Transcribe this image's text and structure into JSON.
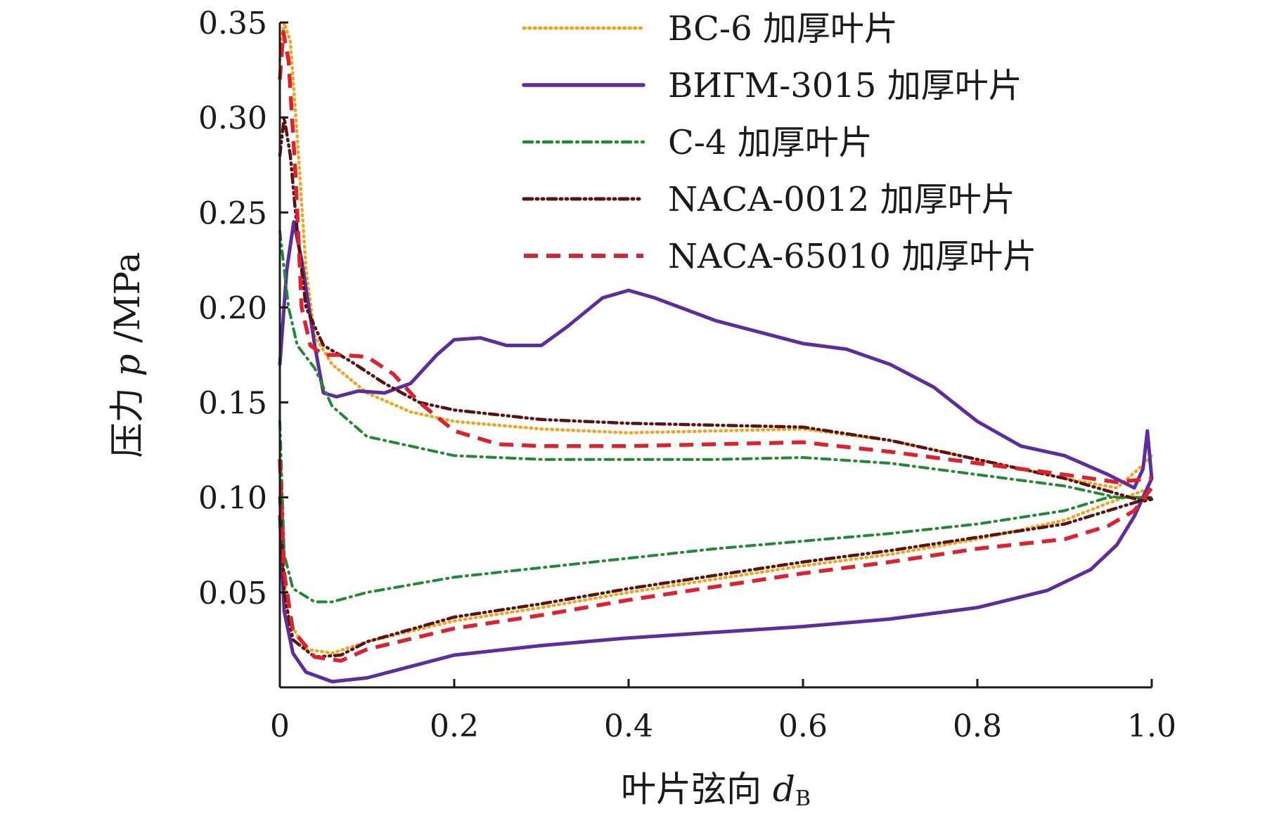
{
  "chart_data": {
    "type": "line",
    "xlabel": "叶片弦向",
    "xlabel_var": "d",
    "xlabel_sub": "B",
    "ylabel": "压力",
    "ylabel_var": "p",
    "ylabel_unit": "/MPa",
    "xlim": [
      0,
      1.0
    ],
    "ylim": [
      0,
      0.35
    ],
    "xticks": [
      {
        "value": 0,
        "label": "0"
      },
      {
        "value": 0.2,
        "label": "0.2"
      },
      {
        "value": 0.4,
        "label": "0.4"
      },
      {
        "value": 0.6,
        "label": "0.6"
      },
      {
        "value": 0.8,
        "label": "0.8"
      },
      {
        "value": 1.0,
        "label": "1.0"
      }
    ],
    "yticks": [
      {
        "value": 0.05,
        "label": "0.05"
      },
      {
        "value": 0.1,
        "label": "0.10"
      },
      {
        "value": 0.15,
        "label": "0.15"
      },
      {
        "value": 0.2,
        "label": "0.20"
      },
      {
        "value": 0.25,
        "label": "0.25"
      },
      {
        "value": 0.3,
        "label": "0.30"
      },
      {
        "value": 0.35,
        "label": "0.35"
      }
    ],
    "grid": false,
    "legend_position": "top-right",
    "series": [
      {
        "name": "BC-6 加厚叶片",
        "color": "#f5a31a",
        "style": "dotted",
        "upper": [
          [
            0,
            0.33
          ],
          [
            0.005,
            0.35
          ],
          [
            0.012,
            0.34
          ],
          [
            0.02,
            0.29
          ],
          [
            0.03,
            0.22
          ],
          [
            0.04,
            0.185
          ],
          [
            0.06,
            0.17
          ],
          [
            0.1,
            0.155
          ],
          [
            0.15,
            0.145
          ],
          [
            0.2,
            0.14
          ],
          [
            0.3,
            0.136
          ],
          [
            0.4,
            0.134
          ],
          [
            0.5,
            0.135
          ],
          [
            0.6,
            0.136
          ],
          [
            0.7,
            0.13
          ],
          [
            0.8,
            0.12
          ],
          [
            0.9,
            0.11
          ],
          [
            0.96,
            0.105
          ],
          [
            0.985,
            0.115
          ],
          [
            1.0,
            0.122
          ]
        ],
        "lower": [
          [
            0,
            0.12
          ],
          [
            0.005,
            0.06
          ],
          [
            0.01,
            0.035
          ],
          [
            0.03,
            0.02
          ],
          [
            0.06,
            0.018
          ],
          [
            0.1,
            0.024
          ],
          [
            0.2,
            0.035
          ],
          [
            0.3,
            0.042
          ],
          [
            0.4,
            0.05
          ],
          [
            0.5,
            0.057
          ],
          [
            0.6,
            0.064
          ],
          [
            0.7,
            0.07
          ],
          [
            0.8,
            0.078
          ],
          [
            0.9,
            0.088
          ],
          [
            0.95,
            0.097
          ],
          [
            1.0,
            0.105
          ]
        ]
      },
      {
        "name": "ВИГМ-3015 加厚叶片",
        "color": "#5c2d9e",
        "style": "solid",
        "upper": [
          [
            0,
            0.17
          ],
          [
            0.008,
            0.22
          ],
          [
            0.016,
            0.245
          ],
          [
            0.025,
            0.225
          ],
          [
            0.04,
            0.18
          ],
          [
            0.05,
            0.155
          ],
          [
            0.065,
            0.153
          ],
          [
            0.09,
            0.156
          ],
          [
            0.12,
            0.155
          ],
          [
            0.15,
            0.16
          ],
          [
            0.18,
            0.175
          ],
          [
            0.2,
            0.183
          ],
          [
            0.23,
            0.184
          ],
          [
            0.26,
            0.18
          ],
          [
            0.3,
            0.18
          ],
          [
            0.33,
            0.19
          ],
          [
            0.37,
            0.205
          ],
          [
            0.4,
            0.209
          ],
          [
            0.43,
            0.205
          ],
          [
            0.5,
            0.193
          ],
          [
            0.6,
            0.181
          ],
          [
            0.65,
            0.178
          ],
          [
            0.7,
            0.17
          ],
          [
            0.75,
            0.158
          ],
          [
            0.8,
            0.14
          ],
          [
            0.85,
            0.127
          ],
          [
            0.9,
            0.122
          ],
          [
            0.95,
            0.112
          ],
          [
            0.98,
            0.105
          ],
          [
            0.99,
            0.115
          ],
          [
            0.995,
            0.135
          ],
          [
            1.0,
            0.11
          ]
        ],
        "lower": [
          [
            0,
            0.09
          ],
          [
            0.005,
            0.04
          ],
          [
            0.015,
            0.018
          ],
          [
            0.03,
            0.008
          ],
          [
            0.06,
            0.003
          ],
          [
            0.1,
            0.005
          ],
          [
            0.15,
            0.011
          ],
          [
            0.2,
            0.017
          ],
          [
            0.3,
            0.022
          ],
          [
            0.4,
            0.026
          ],
          [
            0.5,
            0.029
          ],
          [
            0.6,
            0.032
          ],
          [
            0.7,
            0.036
          ],
          [
            0.8,
            0.042
          ],
          [
            0.88,
            0.051
          ],
          [
            0.93,
            0.062
          ],
          [
            0.96,
            0.075
          ],
          [
            0.98,
            0.09
          ],
          [
            0.99,
            0.1
          ],
          [
            1.0,
            0.11
          ]
        ]
      },
      {
        "name": "C-4 加厚叶片",
        "color": "#1f8a32",
        "style": "dashdot",
        "upper": [
          [
            0,
            0.24
          ],
          [
            0.005,
            0.22
          ],
          [
            0.01,
            0.2
          ],
          [
            0.02,
            0.18
          ],
          [
            0.04,
            0.168
          ],
          [
            0.06,
            0.148
          ],
          [
            0.1,
            0.132
          ],
          [
            0.15,
            0.127
          ],
          [
            0.2,
            0.122
          ],
          [
            0.3,
            0.12
          ],
          [
            0.4,
            0.12
          ],
          [
            0.5,
            0.12
          ],
          [
            0.6,
            0.121
          ],
          [
            0.7,
            0.118
          ],
          [
            0.8,
            0.112
          ],
          [
            0.9,
            0.106
          ],
          [
            0.96,
            0.1
          ],
          [
            1.0,
            0.1
          ]
        ],
        "lower": [
          [
            0,
            0.14
          ],
          [
            0.005,
            0.07
          ],
          [
            0.015,
            0.052
          ],
          [
            0.04,
            0.045
          ],
          [
            0.06,
            0.045
          ],
          [
            0.1,
            0.05
          ],
          [
            0.2,
            0.058
          ],
          [
            0.3,
            0.063
          ],
          [
            0.4,
            0.068
          ],
          [
            0.5,
            0.073
          ],
          [
            0.6,
            0.077
          ],
          [
            0.7,
            0.081
          ],
          [
            0.8,
            0.086
          ],
          [
            0.9,
            0.093
          ],
          [
            0.95,
            0.1
          ],
          [
            1.0,
            0.1
          ]
        ]
      },
      {
        "name": "NACA-0012 加厚叶片",
        "color": "#5a1212",
        "style": "dashdotdot",
        "upper": [
          [
            0,
            0.28
          ],
          [
            0.005,
            0.3
          ],
          [
            0.012,
            0.28
          ],
          [
            0.02,
            0.24
          ],
          [
            0.03,
            0.2
          ],
          [
            0.05,
            0.18
          ],
          [
            0.08,
            0.172
          ],
          [
            0.12,
            0.16
          ],
          [
            0.16,
            0.15
          ],
          [
            0.2,
            0.146
          ],
          [
            0.3,
            0.141
          ],
          [
            0.4,
            0.139
          ],
          [
            0.5,
            0.138
          ],
          [
            0.6,
            0.137
          ],
          [
            0.7,
            0.13
          ],
          [
            0.8,
            0.12
          ],
          [
            0.9,
            0.11
          ],
          [
            0.96,
            0.102
          ],
          [
            0.99,
            0.098
          ],
          [
            1.0,
            0.099
          ]
        ],
        "lower": [
          [
            0,
            0.1
          ],
          [
            0.005,
            0.05
          ],
          [
            0.015,
            0.025
          ],
          [
            0.04,
            0.016
          ],
          [
            0.07,
            0.017
          ],
          [
            0.1,
            0.024
          ],
          [
            0.2,
            0.037
          ],
          [
            0.3,
            0.044
          ],
          [
            0.4,
            0.052
          ],
          [
            0.5,
            0.059
          ],
          [
            0.6,
            0.066
          ],
          [
            0.7,
            0.072
          ],
          [
            0.8,
            0.079
          ],
          [
            0.9,
            0.086
          ],
          [
            0.95,
            0.093
          ],
          [
            1.0,
            0.1
          ]
        ]
      },
      {
        "name": "NACA-65010 加厚叶片",
        "color": "#e0202e",
        "style": "dashed",
        "upper": [
          [
            0,
            0.32
          ],
          [
            0.004,
            0.345
          ],
          [
            0.01,
            0.33
          ],
          [
            0.018,
            0.27
          ],
          [
            0.025,
            0.2
          ],
          [
            0.035,
            0.18
          ],
          [
            0.05,
            0.175
          ],
          [
            0.07,
            0.175
          ],
          [
            0.1,
            0.174
          ],
          [
            0.13,
            0.165
          ],
          [
            0.16,
            0.15
          ],
          [
            0.2,
            0.135
          ],
          [
            0.25,
            0.128
          ],
          [
            0.3,
            0.127
          ],
          [
            0.4,
            0.127
          ],
          [
            0.5,
            0.128
          ],
          [
            0.6,
            0.129
          ],
          [
            0.7,
            0.124
          ],
          [
            0.8,
            0.118
          ],
          [
            0.9,
            0.112
          ],
          [
            0.96,
            0.108
          ],
          [
            1.0,
            0.11
          ]
        ],
        "lower": [
          [
            0,
            0.12
          ],
          [
            0.005,
            0.06
          ],
          [
            0.015,
            0.03
          ],
          [
            0.04,
            0.016
          ],
          [
            0.07,
            0.014
          ],
          [
            0.1,
            0.02
          ],
          [
            0.2,
            0.031
          ],
          [
            0.3,
            0.038
          ],
          [
            0.4,
            0.046
          ],
          [
            0.5,
            0.053
          ],
          [
            0.6,
            0.06
          ],
          [
            0.7,
            0.066
          ],
          [
            0.8,
            0.073
          ],
          [
            0.9,
            0.078
          ],
          [
            0.95,
            0.085
          ],
          [
            0.98,
            0.093
          ],
          [
            1.0,
            0.105
          ]
        ]
      }
    ]
  }
}
